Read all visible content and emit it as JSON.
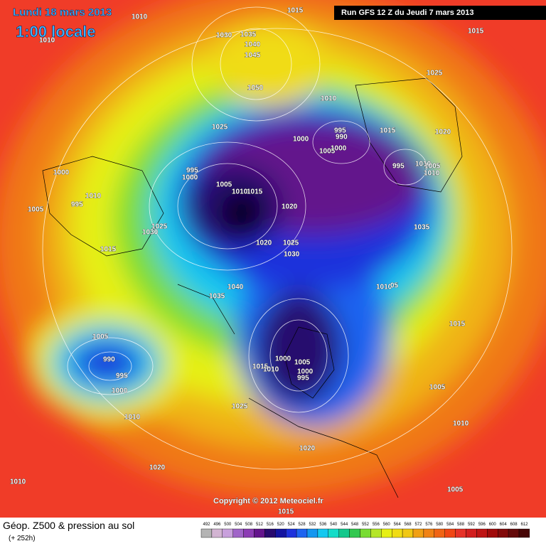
{
  "header": {
    "date": "Lundi 18 mars 2013",
    "time": "1:00 locale",
    "run": "Run GFS 12 Z du Jeudi 7 mars 2013"
  },
  "footer": {
    "title": "Géop. Z500 & pression au sol",
    "lead": "(+ 252h)",
    "copyright": "Copyright © 2012 Meteociel.fr"
  },
  "colorbar": {
    "values": [
      492,
      496,
      500,
      504,
      508,
      512,
      516,
      520,
      524,
      528,
      532,
      536,
      540,
      544,
      548,
      552,
      556,
      560,
      564,
      568,
      572,
      576,
      580,
      584,
      588,
      592,
      596,
      600,
      604,
      608,
      612
    ],
    "colors": [
      "#b4b4b4",
      "#d2b4d2",
      "#c8a0dc",
      "#a064c8",
      "#8c3cb4",
      "#64148c",
      "#280a6e",
      "#1414a0",
      "#1e32dc",
      "#1e64f0",
      "#1496f0",
      "#14c8f0",
      "#14dcc8",
      "#14c88c",
      "#32c850",
      "#78dc32",
      "#b4e628",
      "#e6f014",
      "#f0dc14",
      "#f0c814",
      "#f0a014",
      "#f08214",
      "#f06414",
      "#f04614",
      "#e63228",
      "#d21e1e",
      "#be1414",
      "#a00a0a",
      "#820a0a",
      "#640a0a",
      "#460505"
    ]
  },
  "isobar_labels": [
    "1010",
    "1010",
    "1015",
    "1015",
    "1030",
    "1035",
    "1040",
    "1045",
    "1025",
    "1050",
    "1010",
    "1025",
    "995",
    "990",
    "1000",
    "1015",
    "1020",
    "1005",
    "1000",
    "995",
    "1000",
    "1000",
    "995",
    "1010",
    "1005",
    "1010",
    "1005",
    "1010",
    "1015",
    "1010",
    "995",
    "1005",
    "1020",
    "1025",
    "1030",
    "1035",
    "1020",
    "1025",
    "1030",
    "1015",
    "1040",
    "1035",
    "1010",
    "05",
    "1015",
    "1005",
    "990",
    "995",
    "1000",
    "1000",
    "1005",
    "1015",
    "1010",
    "1000",
    "995",
    "1005",
    "1025",
    "1010",
    "1010",
    "1020",
    "1020",
    "1010",
    "1005",
    "1015"
  ]
}
